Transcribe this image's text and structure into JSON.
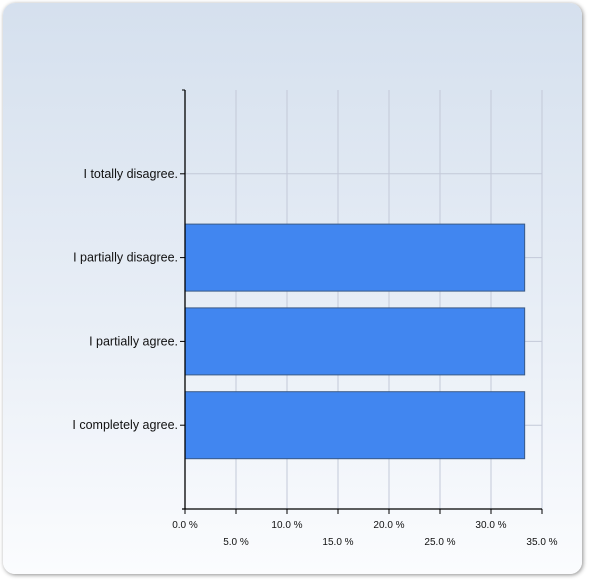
{
  "chart_data": {
    "type": "bar",
    "orientation": "horizontal",
    "categories": [
      "I totally disagree.",
      "I partially disagree.",
      "I partially agree.",
      "I completely agree."
    ],
    "values": [
      0,
      33.3,
      33.3,
      33.3
    ],
    "xlim": [
      0,
      35
    ],
    "xticks": [
      0,
      5,
      10,
      15,
      20,
      25,
      30,
      35
    ],
    "xtick_labels": [
      "0.0 %",
      "5.0 %",
      "10.0 %",
      "15.0 %",
      "20.0 %",
      "25.0 %",
      "30.0 %",
      "35.0 %"
    ],
    "grid": true,
    "bar_color": "#4186f0",
    "bar_border_color": "#3a5a86",
    "grid_color": "#c3c9d8"
  }
}
